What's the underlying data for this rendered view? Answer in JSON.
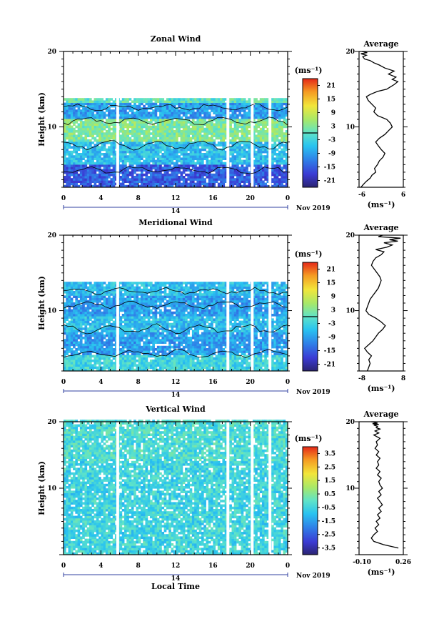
{
  "x_axis": {
    "label": "Local Time",
    "date_label": "Nov 2019",
    "day_label": "14",
    "ticks": [
      "0",
      "4",
      "8",
      "12",
      "16",
      "20",
      "0"
    ]
  },
  "chart_data": [
    {
      "type": "heatmap",
      "title": "Zonal Wind",
      "ylabel": "Height (km)",
      "ylim": [
        2,
        20
      ],
      "y_ticks": [
        "20",
        "10"
      ],
      "xlim": [
        0,
        24
      ],
      "colorbar": {
        "unit": "(ms⁻¹)",
        "range": [
          -24,
          24
        ],
        "ticks": [
          "21",
          "15",
          "9",
          "3",
          "-3",
          "-9",
          "-15",
          "-21"
        ],
        "zero_line": true
      },
      "data_gaps_hours": [
        5.8,
        17.6,
        20.2,
        22.1
      ],
      "description_values": {
        "wind_layers": [
          {
            "height_km_range": [
              2,
              5
            ],
            "value": -15
          },
          {
            "height_km_range": [
              5,
              8
            ],
            "value": -6
          },
          {
            "height_km_range": [
              8,
              11
            ],
            "value": 3
          },
          {
            "height_km_range": [
              11,
              13
            ],
            "value": -9
          },
          {
            "height_km_range": [
              13,
              14
            ],
            "value": 0
          }
        ]
      },
      "profile": {
        "title": "Average",
        "xlabel": "(ms⁻¹)",
        "x_ticks": [
          "-6",
          "6"
        ],
        "y_ticks": [
          "20",
          "10"
        ],
        "xlim": [
          -6,
          6
        ],
        "ylim": [
          2,
          20
        ],
        "x": [
          -5.5,
          -4.8,
          -4.0,
          -3.0,
          -2.5,
          -1.5,
          -1.8,
          -1.0,
          -0.5,
          0.5,
          1.0,
          0.0,
          -0.8,
          -1.5,
          -0.5,
          1.0,
          2.0,
          3.0,
          2.5,
          1.5,
          -1.0,
          -2.0,
          -1.5,
          -2.5,
          -3.5,
          -4.0,
          -3.0,
          -1.0,
          1.5,
          2.5,
          3.5,
          4.5,
          3.0,
          4.0,
          2.0,
          3.5,
          1.0,
          -0.5,
          -2.0,
          -3.0,
          -4.5,
          -5.0,
          -4.0,
          -5.5,
          -3.8,
          -5.2
        ],
        "y": [
          2.0,
          2.4,
          2.8,
          3.2,
          3.6,
          4.0,
          4.5,
          5.0,
          5.5,
          6.0,
          6.5,
          7.0,
          7.5,
          8.0,
          8.5,
          9.0,
          9.5,
          10.0,
          10.5,
          11.0,
          11.5,
          12.0,
          12.5,
          13.0,
          13.5,
          14.0,
          14.3,
          14.7,
          15.0,
          15.3,
          15.6,
          16.0,
          16.3,
          16.6,
          17.0,
          17.4,
          17.8,
          18.2,
          18.5,
          18.8,
          19.0,
          19.3,
          19.5,
          19.7,
          19.85,
          20.0
        ]
      }
    },
    {
      "type": "heatmap",
      "title": "Meridional Wind",
      "ylabel": "Height (km)",
      "ylim": [
        2,
        20
      ],
      "y_ticks": [
        "20",
        "10"
      ],
      "xlim": [
        0,
        24
      ],
      "colorbar": {
        "unit": "(ms⁻¹)",
        "range": [
          -24,
          24
        ],
        "ticks": [
          "21",
          "15",
          "9",
          "3",
          "-3",
          "-9",
          "-15",
          "-21"
        ],
        "zero_line": true
      },
      "data_gaps_hours": [
        5.8,
        17.6,
        20.2,
        22.1
      ],
      "description_values": {
        "wind_layers": [
          {
            "height_km_range": [
              2,
              4
            ],
            "value": -3
          },
          {
            "height_km_range": [
              4,
              7
            ],
            "value": -9
          },
          {
            "height_km_range": [
              7,
              9
            ],
            "value": -6
          },
          {
            "height_km_range": [
              9,
              12
            ],
            "value": -9
          },
          {
            "height_km_range": [
              12,
              14
            ],
            "value": -6
          }
        ]
      },
      "profile": {
        "title": "Average",
        "xlabel": "(ms⁻¹)",
        "x_ticks": [
          "-8",
          "8"
        ],
        "y_ticks": [
          "20",
          "10"
        ],
        "xlim": [
          -8,
          8
        ],
        "ylim": [
          2,
          20
        ],
        "x": [
          -5.0,
          -4.5,
          -4.0,
          -4.5,
          -3.5,
          -5.0,
          -6.0,
          -4.5,
          -3.0,
          -2.0,
          -1.0,
          0.5,
          1.5,
          0.0,
          -2.0,
          -4.5,
          -5.5,
          -5.0,
          -4.5,
          -4.0,
          -3.0,
          -2.0,
          -1.0,
          -0.5,
          0.0,
          -0.5,
          -1.5,
          -2.5,
          -3.5,
          -3.0,
          -2.0,
          0.0,
          1.0,
          -2.0,
          2.0,
          4.0,
          1.0,
          6.0,
          3.0,
          7.0,
          -1.0,
          0.5
        ],
        "y": [
          2.0,
          2.5,
          3.0,
          3.5,
          4.0,
          4.5,
          5.0,
          5.5,
          6.0,
          6.5,
          7.0,
          7.5,
          8.0,
          8.5,
          9.0,
          9.5,
          10.0,
          10.5,
          11.0,
          11.5,
          12.0,
          12.5,
          13.0,
          13.5,
          14.0,
          14.5,
          15.0,
          15.5,
          16.0,
          16.5,
          17.0,
          17.4,
          17.8,
          18.1,
          18.4,
          18.7,
          19.0,
          19.2,
          19.4,
          19.6,
          19.8,
          20.0
        ]
      }
    },
    {
      "type": "heatmap",
      "title": "Vertical Wind",
      "ylabel": "Height (km)",
      "ylim": [
        0,
        20
      ],
      "y_ticks": [
        "20",
        "10"
      ],
      "xlim": [
        0,
        24
      ],
      "colorbar": {
        "unit": "(ms⁻¹)",
        "range": [
          -4,
          4
        ],
        "ticks": [
          "3.5",
          "2.5",
          "1.5",
          "0.5",
          "-0.5",
          "-1.5",
          "-2.5",
          "-3.5"
        ],
        "zero_line": false
      },
      "data_gaps_hours": [
        5.8,
        17.6,
        20.2,
        22.1
      ],
      "description_values": {
        "wind_layers": [
          {
            "height_km_range": [
              0,
              14
            ],
            "value": -0.5
          },
          {
            "height_km_range": [
              14,
              20
            ],
            "value": -0.3
          }
        ]
      },
      "profile": {
        "title": "Average",
        "xlabel": "(ms⁻¹)",
        "x_ticks": [
          "-0.10",
          "0.26"
        ],
        "y_ticks": [
          "20",
          "10"
        ],
        "xlim": [
          -0.1,
          0.26
        ],
        "ylim": [
          0,
          20
        ],
        "x": [
          0.22,
          0.1,
          0.02,
          0.0,
          0.02,
          0.05,
          0.03,
          0.06,
          0.04,
          0.07,
          0.05,
          0.08,
          0.06,
          0.09,
          0.07,
          0.05,
          0.08,
          0.06,
          0.09,
          0.07,
          0.06,
          0.08,
          0.05,
          0.07,
          0.04,
          0.06,
          0.05,
          0.07,
          0.04,
          0.06,
          0.03,
          0.05,
          0.04,
          0.07,
          0.02,
          0.06,
          0.03,
          0.07,
          0.04,
          0.05,
          0.02,
          0.06,
          0.01,
          0.05,
          0.0
        ],
        "y": [
          1.0,
          1.5,
          2.0,
          2.5,
          3.0,
          3.5,
          4.0,
          4.5,
          5.0,
          5.5,
          6.0,
          6.5,
          7.0,
          7.5,
          8.0,
          8.5,
          9.0,
          9.5,
          10.0,
          10.5,
          11.0,
          11.5,
          12.0,
          12.5,
          13.0,
          13.5,
          14.0,
          14.5,
          15.0,
          15.5,
          16.0,
          16.5,
          17.0,
          17.5,
          18.0,
          18.3,
          18.6,
          18.9,
          19.1,
          19.3,
          19.5,
          19.6,
          19.7,
          19.8,
          20.0
        ]
      }
    }
  ]
}
